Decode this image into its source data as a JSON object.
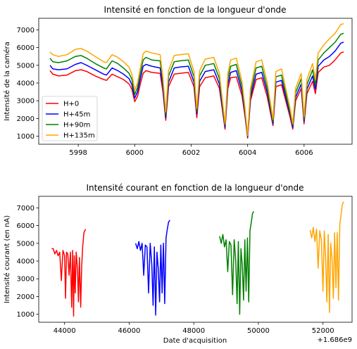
{
  "chart_data": [
    {
      "type": "line",
      "title": "Intensité en fonction de la longueur d'onde",
      "xlabel": "",
      "ylabel": "Intensité de la caméra",
      "xlim": [
        5996.6,
        6007.7
      ],
      "ylim": [
        550,
        7650
      ],
      "xticks": [
        5998,
        6000,
        6002,
        6004,
        6006
      ],
      "xtick_labels": [
        "5998",
        "6000",
        "6002",
        "6004",
        "6006"
      ],
      "yticks": [
        1000,
        2000,
        3000,
        4000,
        5000,
        6000,
        7000
      ],
      "ytick_labels": [
        "1000",
        "2000",
        "3000",
        "4000",
        "5000",
        "6000",
        "7000"
      ],
      "legend_position": "lower-left",
      "x": [
        5997.0,
        5997.1,
        5997.3,
        5997.6,
        5997.9,
        5998.1,
        5998.3,
        5998.6,
        5998.9,
        5999.0,
        5999.2,
        5999.4,
        5999.6,
        5999.8,
        5999.9,
        6000.0,
        6000.1,
        6000.2,
        6000.3,
        6000.4,
        6000.6,
        6000.9,
        6001.0,
        6001.1,
        6001.2,
        6001.4,
        6001.6,
        6001.9,
        6002.1,
        6002.2,
        6002.3,
        6002.5,
        6002.8,
        6003.0,
        6003.2,
        6003.3,
        6003.4,
        6003.6,
        6003.8,
        6003.9,
        6004.0,
        6004.1,
        6004.3,
        6004.5,
        6004.7,
        6004.9,
        6005.0,
        6005.2,
        6005.5,
        6005.6,
        6005.7,
        6005.9,
        6006.0,
        6006.1,
        6006.3,
        6006.4,
        6006.5,
        6006.7,
        6006.9,
        6007.1,
        6007.3,
        6007.4
      ],
      "series": [
        {
          "name": "H+0",
          "color": "#ff0000",
          "values": [
            4700,
            4500,
            4400,
            4450,
            4700,
            4750,
            4650,
            4400,
            4200,
            4150,
            4500,
            4350,
            4200,
            3950,
            3650,
            2950,
            3250,
            3950,
            4550,
            4700,
            4600,
            4550,
            3500,
            1900,
            3800,
            4500,
            4550,
            4600,
            3800,
            2050,
            3800,
            4300,
            4400,
            3700,
            1400,
            3700,
            4300,
            4350,
            3300,
            2200,
            900,
            3000,
            4200,
            4300,
            3200,
            1600,
            3800,
            3900,
            2100,
            1400,
            3000,
            3700,
            1700,
            3400,
            4100,
            3400,
            4600,
            4900,
            5000,
            5300,
            5700,
            5750
          ]
        },
        {
          "name": "H+45m",
          "color": "#0000ff",
          "values": [
            5000,
            4800,
            4750,
            4800,
            5050,
            5150,
            5000,
            4750,
            4500,
            4450,
            4850,
            4700,
            4500,
            4250,
            3900,
            3150,
            3500,
            4250,
            4950,
            5050,
            4950,
            4850,
            3750,
            2050,
            4050,
            4850,
            4900,
            4950,
            4050,
            2250,
            4100,
            4650,
            4750,
            3950,
            1500,
            3950,
            4600,
            4700,
            3550,
            2350,
            950,
            3200,
            4500,
            4600,
            3450,
            1700,
            4050,
            4150,
            2250,
            1500,
            3200,
            3950,
            1850,
            3650,
            4400,
            3650,
            4950,
            5300,
            5500,
            5800,
            6250,
            6300
          ]
        },
        {
          "name": "H+90m",
          "color": "#008000",
          "values": [
            5400,
            5200,
            5150,
            5250,
            5500,
            5550,
            5400,
            5100,
            4850,
            4800,
            5250,
            5100,
            4850,
            4550,
            4200,
            3350,
            3750,
            4550,
            5300,
            5450,
            5300,
            5250,
            4050,
            2200,
            4400,
            5200,
            5250,
            5300,
            4350,
            2400,
            4400,
            5000,
            5100,
            4250,
            1600,
            4250,
            4950,
            5050,
            3800,
            2500,
            1000,
            3450,
            4850,
            4950,
            3700,
            1800,
            4350,
            4450,
            2400,
            1600,
            3450,
            4250,
            1950,
            3900,
            4750,
            3900,
            5300,
            5700,
            6000,
            6300,
            6750,
            6800
          ]
        },
        {
          "name": "H+135m",
          "color": "#ffa500",
          "values": [
            5750,
            5600,
            5500,
            5600,
            5900,
            5950,
            5800,
            5500,
            5200,
            5150,
            5600,
            5450,
            5200,
            4900,
            4500,
            3600,
            4000,
            4850,
            5650,
            5800,
            5700,
            5600,
            4300,
            2350,
            4700,
            5550,
            5600,
            5650,
            4650,
            2550,
            4700,
            5350,
            5450,
            4550,
            1700,
            4550,
            5300,
            5400,
            4100,
            2700,
            1050,
            3700,
            5200,
            5300,
            4000,
            1950,
            4650,
            4800,
            2600,
            1700,
            3700,
            4550,
            2100,
            4200,
            5100,
            4200,
            5700,
            6150,
            6500,
            6800,
            7300,
            7350
          ]
        }
      ]
    },
    {
      "type": "line",
      "title": "Intensité courant en fonction de la longueur d'onde",
      "xlabel": "Date d'acquisition",
      "ylabel": "Intensité courant (en nA)",
      "offset_text": "+1.686e9",
      "xlim": [
        43200,
        52900
      ],
      "ylim": [
        550,
        7650
      ],
      "xticks": [
        44000,
        46000,
        48000,
        50000,
        52000
      ],
      "xtick_labels": [
        "44000",
        "46000",
        "48000",
        "50000",
        "52000"
      ],
      "yticks": [
        1000,
        2000,
        3000,
        4000,
        5000,
        6000,
        7000
      ],
      "ytick_labels": [
        "1000",
        "2000",
        "3000",
        "4000",
        "5000",
        "6000",
        "7000"
      ],
      "series": [
        {
          "color": "#ff0000",
          "x": [
            43600,
            43650,
            43700,
            43750,
            43800,
            43850,
            43900,
            43950,
            44000,
            44030,
            44060,
            44100,
            44140,
            44180,
            44220,
            44250,
            44280,
            44300,
            44330,
            44360,
            44400,
            44430,
            44460,
            44500,
            44530,
            44560,
            44600,
            44650
          ],
          "values": [
            4700,
            4700,
            4400,
            4600,
            4300,
            4500,
            2900,
            4600,
            4300,
            1900,
            4500,
            4400,
            3200,
            4500,
            1400,
            4600,
            900,
            4300,
            2200,
            4500,
            3500,
            1700,
            4200,
            1400,
            3700,
            4800,
            5600,
            5800
          ]
        },
        {
          "color": "#0000ff",
          "x": [
            46200,
            46250,
            46300,
            46350,
            46400,
            46450,
            46500,
            46550,
            46600,
            46650,
            46700,
            46740,
            46780,
            46820,
            46860,
            46900,
            46940,
            46980,
            47020,
            47060,
            47100,
            47140,
            47180,
            47220,
            47260
          ],
          "values": [
            5000,
            4700,
            5100,
            4600,
            5000,
            3200,
            4900,
            4800,
            2200,
            5000,
            3800,
            1500,
            4800,
            950,
            4500,
            3600,
            1700,
            4900,
            2200,
            5000,
            1600,
            5300,
            5800,
            6200,
            6300
          ]
        },
        {
          "color": "#008000",
          "x": [
            48800,
            48850,
            48900,
            48950,
            49000,
            49050,
            49100,
            49150,
            49200,
            49250,
            49300,
            49340,
            49380,
            49420,
            49460,
            49500,
            49540,
            49580,
            49620,
            49660,
            49700,
            49740,
            49780,
            49820,
            49860
          ],
          "values": [
            5400,
            5000,
            5500,
            4800,
            5200,
            3400,
            5100,
            4900,
            2100,
            5200,
            4000,
            1600,
            5100,
            1000,
            4700,
            3800,
            1800,
            5200,
            2300,
            5300,
            1700,
            5700,
            6200,
            6700,
            6800
          ]
        },
        {
          "color": "#ffa500",
          "x": [
            51600,
            51650,
            51700,
            51750,
            51800,
            51850,
            51900,
            51950,
            52000,
            52040,
            52080,
            52120,
            52160,
            52200,
            52240,
            52280,
            52320,
            52360,
            52400,
            52440,
            52480,
            52520,
            52560,
            52600,
            52640
          ],
          "values": [
            5750,
            5300,
            5900,
            5100,
            5800,
            3600,
            5700,
            5200,
            2300,
            5700,
            4200,
            1700,
            5500,
            1100,
            5000,
            4100,
            1900,
            5600,
            2500,
            5600,
            1800,
            6100,
            6600,
            7200,
            7350
          ]
        }
      ]
    }
  ]
}
